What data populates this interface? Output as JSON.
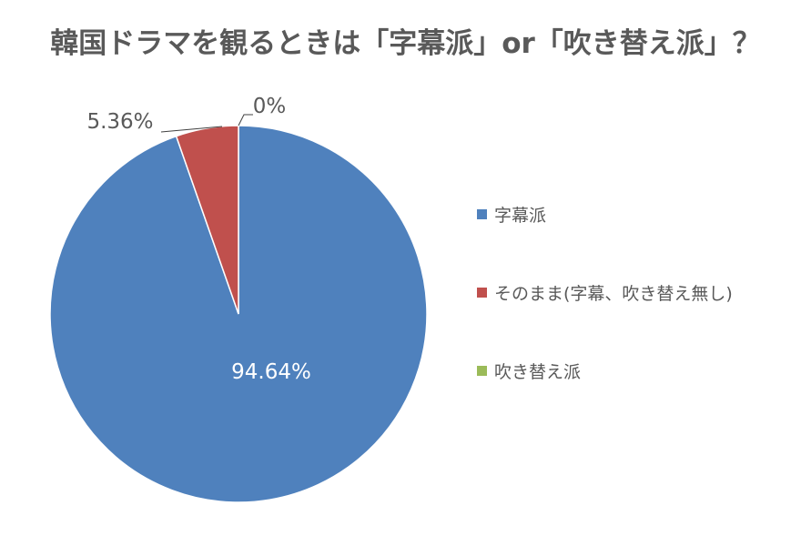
{
  "chart_data": {
    "type": "pie",
    "title": "韓国ドラマを観るときは「字幕派」or「吹き替え派」？",
    "categories": [
      "字幕派",
      "そのまま(字幕、吹き替え無し)",
      "吹き替え派"
    ],
    "values": [
      94.64,
      5.36,
      0
    ],
    "value_labels": [
      "94.64%",
      "5.36%",
      "0%"
    ],
    "colors": [
      "#4F81BD",
      "#C0504D",
      "#9BBB59"
    ],
    "legend_position": "right"
  }
}
